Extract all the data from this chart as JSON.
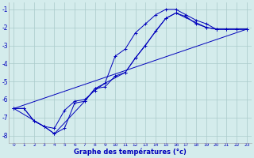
{
  "xlabel": "Graphe des températures (°c)",
  "bg_color": "#d4ecec",
  "grid_color": "#aacaca",
  "line_color": "#0000bb",
  "xlim": [
    -0.5,
    23.5
  ],
  "ylim": [
    -8.4,
    -0.6
  ],
  "xticks": [
    0,
    1,
    2,
    3,
    4,
    5,
    6,
    7,
    8,
    9,
    10,
    11,
    12,
    13,
    14,
    15,
    16,
    17,
    18,
    19,
    20,
    21,
    22,
    23
  ],
  "yticks": [
    -8,
    -7,
    -6,
    -5,
    -4,
    -3,
    -2,
    -1
  ],
  "line1_x": [
    0,
    1,
    2,
    3,
    4,
    5,
    6,
    7,
    8,
    9,
    10,
    11,
    12,
    13,
    14,
    15,
    16,
    17,
    18,
    19,
    20,
    21,
    22,
    23
  ],
  "line1_y": [
    -6.5,
    -6.5,
    -7.2,
    -7.5,
    -7.6,
    -6.6,
    -6.1,
    -6.0,
    -5.5,
    -5.1,
    -3.6,
    -3.2,
    -2.3,
    -1.8,
    -1.3,
    -1.0,
    -1.0,
    -1.3,
    -1.6,
    -1.8,
    -2.1,
    -2.1,
    -2.1,
    -2.1
  ],
  "line2_x": [
    0,
    1,
    2,
    3,
    4,
    5,
    6,
    7,
    8,
    9,
    10,
    11,
    12,
    13,
    14,
    15,
    16,
    17,
    18,
    19,
    20,
    21,
    22,
    23
  ],
  "line2_y": [
    -6.5,
    -6.5,
    -7.2,
    -7.5,
    -7.9,
    -7.6,
    -6.2,
    -6.1,
    -5.4,
    -5.3,
    -4.7,
    -4.5,
    -3.7,
    -3.0,
    -2.2,
    -1.5,
    -1.2,
    -1.4,
    -1.8,
    -2.0,
    -2.1,
    -2.1,
    -2.1,
    -2.1
  ],
  "line3_x": [
    0,
    3,
    4,
    7,
    8,
    11,
    12,
    15,
    16,
    19,
    20,
    23
  ],
  "line3_y": [
    -6.5,
    -7.5,
    -7.9,
    -6.1,
    -5.4,
    -4.5,
    -3.7,
    -1.5,
    -1.2,
    -2.0,
    -2.1,
    -2.1
  ],
  "line4_x": [
    0,
    23
  ],
  "line4_y": [
    -6.5,
    -2.1
  ]
}
